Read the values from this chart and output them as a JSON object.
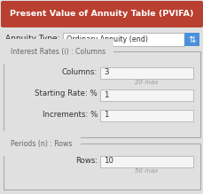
{
  "title": "Present Value of Annuity Table (PVIFA)",
  "title_bg": "#b94030",
  "title_color": "#ffffff",
  "bg_color": "#e0e0e0",
  "annuity_label": "Annuity Type:",
  "annuity_value": "Ordinary Annuity (end)",
  "section1_label": "Interest Rates (i) : Columns",
  "col_label": "Columns:",
  "col_value": "3",
  "col_hint": "20 max",
  "rate_label": "Starting Rate: %",
  "rate_value": "1",
  "inc_label": "Increments: %",
  "inc_value": "1",
  "section2_label": "Periods (n) : Rows",
  "rows_label": "Rows:",
  "rows_value": "10",
  "rows_hint": "50 max",
  "dropdown_color": "#4a90d9",
  "border_color": "#aaaaaa",
  "input_bg": "#f5f5f5",
  "label_color": "#333333",
  "hint_color": "#999999",
  "section_label_color": "#666666"
}
